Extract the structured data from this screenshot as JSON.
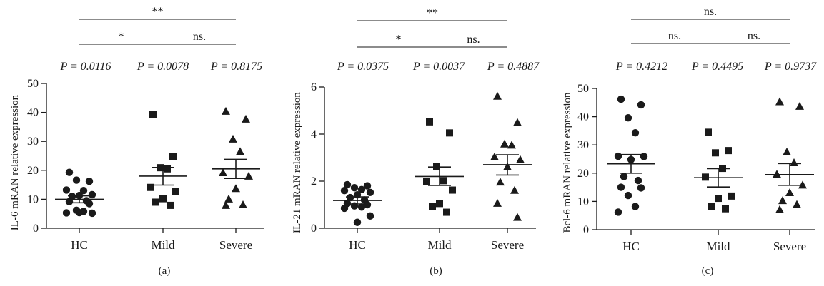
{
  "chart_data": [
    {
      "type": "scatter",
      "panel_label": "(a)",
      "ylabel": "IL-6 mRAN relative expression",
      "categories": [
        "HC",
        "Mild",
        "Severe"
      ],
      "ylim": [
        0,
        50
      ],
      "yticks": [
        0,
        10,
        20,
        30,
        40,
        50
      ],
      "p_values": [
        "P = 0.0116",
        "P = 0.0078",
        "P = 0.8175"
      ],
      "brackets": [
        {
          "from": "HC",
          "to": "Severe",
          "label": "**",
          "level": 2
        },
        {
          "from": "HC",
          "to": "Mild",
          "label": "*",
          "level": 1
        },
        {
          "from": "Mild",
          "to": "Severe",
          "label": "ns.",
          "level": 1
        }
      ],
      "series": [
        {
          "category": "HC",
          "marker": "circle",
          "mean": 10.0,
          "sem": [
            8.8,
            11.2
          ],
          "values": [
            19.3,
            16.2,
            16.6,
            13.0,
            13.2,
            11.6,
            11.3,
            11.0,
            9.5,
            9.2,
            8.5,
            6.2,
            5.8,
            5.3,
            5.2,
            5.4
          ]
        },
        {
          "category": "Mild",
          "marker": "square",
          "mean": 18.0,
          "sem": [
            14.9,
            21.0
          ],
          "values": [
            39.3,
            24.7,
            20.9,
            20.5,
            14.1,
            12.8,
            10.2,
            9.0,
            7.9
          ]
        },
        {
          "category": "Severe",
          "marker": "triangle",
          "mean": 20.5,
          "sem": [
            17.2,
            23.8
          ],
          "values": [
            40.3,
            37.6,
            30.7,
            26.4,
            19.1,
            17.9,
            13.6,
            10.0,
            8.0,
            7.8
          ]
        }
      ]
    },
    {
      "type": "scatter",
      "panel_label": "(b)",
      "ylabel": "IL-21 mRAN relative expression",
      "categories": [
        "HC",
        "Mild",
        "Severe"
      ],
      "ylim": [
        0,
        6
      ],
      "yticks": [
        0,
        2,
        4,
        6
      ],
      "p_values": [
        "P = 0.0375",
        "P = 0.0037",
        "P = 0.4887"
      ],
      "brackets": [
        {
          "from": "HC",
          "to": "Severe",
          "label": "**",
          "level": 2
        },
        {
          "from": "HC",
          "to": "Mild",
          "label": "*",
          "level": 1
        },
        {
          "from": "Mild",
          "to": "Severe",
          "label": "ns.",
          "level": 1
        }
      ],
      "series": [
        {
          "category": "HC",
          "marker": "circle",
          "mean": 1.18,
          "sem": [
            1.03,
            1.33
          ],
          "values": [
            1.85,
            1.8,
            1.72,
            1.64,
            1.6,
            1.52,
            1.42,
            1.3,
            1.2,
            1.05,
            1.0,
            0.95,
            0.9,
            0.85,
            0.52,
            0.25
          ]
        },
        {
          "category": "Mild",
          "marker": "square",
          "mean": 2.2,
          "sem": [
            1.82,
            2.6
          ],
          "values": [
            4.52,
            4.05,
            2.62,
            2.02,
            2.0,
            1.62,
            1.05,
            0.92,
            0.68
          ]
        },
        {
          "category": "Severe",
          "marker": "triangle",
          "mean": 2.7,
          "sem": [
            2.26,
            3.12
          ],
          "values": [
            5.6,
            4.48,
            3.57,
            3.52,
            3.02,
            2.9,
            2.6,
            1.95,
            1.6,
            1.05,
            0.45
          ]
        }
      ]
    },
    {
      "type": "scatter",
      "panel_label": "(c)",
      "ylabel": "Bcl-6 mRAN relative expression",
      "categories": [
        "HC",
        "Mild",
        "Severe"
      ],
      "ylim": [
        0,
        50
      ],
      "yticks": [
        0,
        10,
        20,
        30,
        40,
        50
      ],
      "p_values": [
        "P = 0.4212",
        "P = 0.4495",
        "P = 0.9737"
      ],
      "brackets": [
        {
          "from": "HC",
          "to": "Severe",
          "label": "ns.",
          "level": 2
        },
        {
          "from": "HC",
          "to": "Mild",
          "label": "ns.",
          "level": 1
        },
        {
          "from": "Mild",
          "to": "Severe",
          "label": "ns.",
          "level": 1
        }
      ],
      "series": [
        {
          "category": "HC",
          "marker": "circle",
          "mean": 23.3,
          "sem": [
            20.0,
            26.6
          ],
          "values": [
            46.2,
            44.2,
            39.6,
            34.3,
            26.0,
            25.9,
            24.8,
            18.8,
            17.4,
            15.0,
            14.8,
            12.1,
            8.2,
            6.2
          ]
        },
        {
          "category": "Mild",
          "marker": "square",
          "mean": 18.4,
          "sem": [
            15.1,
            21.6
          ],
          "values": [
            34.5,
            28.0,
            27.2,
            21.7,
            18.6,
            11.9,
            11.1,
            8.2,
            7.4
          ]
        },
        {
          "category": "Severe",
          "marker": "triangle",
          "mean": 19.5,
          "sem": [
            15.7,
            23.4
          ],
          "values": [
            45.2,
            43.6,
            27.4,
            23.6,
            19.5,
            15.7,
            13.0,
            10.2,
            8.8,
            7.0
          ]
        }
      ]
    }
  ]
}
